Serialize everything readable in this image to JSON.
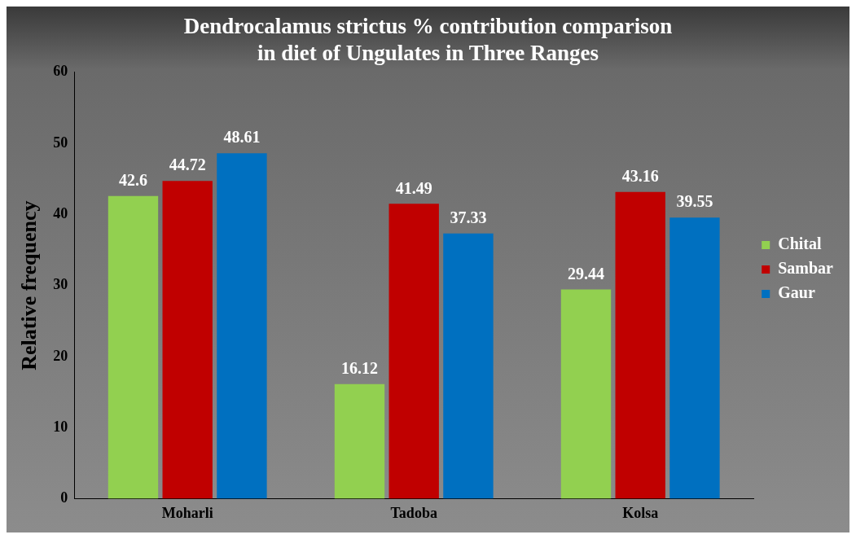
{
  "chart_data": {
    "type": "bar",
    "title": "Dendrocalamus strictus % contribution comparison in diet of Ungulates in Three Ranges",
    "ylabel": "Relative frequency",
    "categories": [
      "Moharli",
      "Tadoba",
      "Kolsa"
    ],
    "series": [
      {
        "name": "Chital",
        "color": "#92d050",
        "values": [
          42.6,
          16.12,
          29.44
        ]
      },
      {
        "name": "Sambar",
        "color": "#c00000",
        "values": [
          44.72,
          41.49,
          43.16
        ]
      },
      {
        "name": "Gaur",
        "color": "#0070c0",
        "values": [
          48.61,
          37.33,
          39.55
        ]
      }
    ],
    "ylim": [
      0,
      60
    ],
    "yticks": [
      0,
      10,
      20,
      30,
      40,
      50,
      60
    ],
    "grid": false,
    "legend": "right",
    "data_labels": true
  }
}
